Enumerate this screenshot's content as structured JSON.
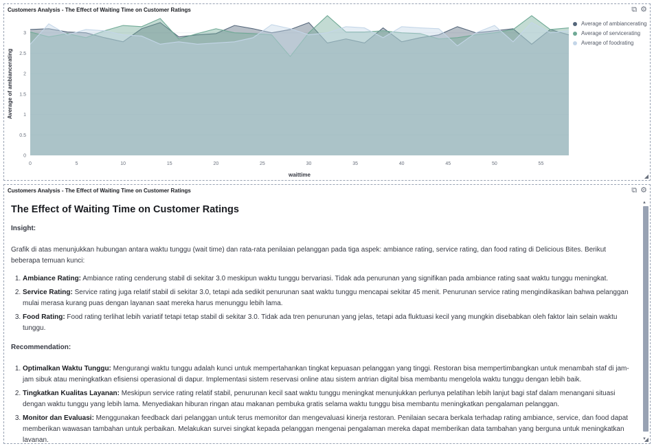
{
  "chart_panel": {
    "title": "Customers Analysis - The Effect of Waiting Time on Customer Ratings",
    "icons": [
      "layers-icon",
      "gear-icon"
    ]
  },
  "text_panel": {
    "title": "Customers Analysis - The Effect of Waiting Time on Customer Ratings",
    "heading": "The Effect of Waiting Time on Customer Ratings",
    "insight_label": "Insight:",
    "intro": "Grafik di atas menunjukkan hubungan antara waktu tunggu (wait time) dan rata-rata penilaian pelanggan pada tiga aspek: ambiance rating, service rating, dan food rating di Delicious Bites. Berikut beberapa temuan kunci:",
    "insights": [
      {
        "title": "Ambiance Rating:",
        "text": " Ambiance rating cenderung stabil di sekitar 3.0 meskipun waktu tunggu bervariasi. Tidak ada penurunan yang signifikan pada ambiance rating saat waktu tunggu meningkat."
      },
      {
        "title": "Service Rating:",
        "text": " Service rating juga relatif stabil di sekitar 3.0, tetapi ada sedikit penurunan saat waktu tunggu mencapai sekitar 45 menit. Penurunan service rating mengindikasikan bahwa pelanggan mulai merasa kurang puas dengan layanan saat mereka harus menunggu lebih lama."
      },
      {
        "title": "Food Rating:",
        "text": " Food rating terlihat lebih variatif tetapi tetap stabil di sekitar 3.0. Tidak ada tren penurunan yang jelas, tetapi ada fluktuasi kecil yang mungkin disebabkan oleh faktor lain selain waktu tunggu."
      }
    ],
    "recommendation_label": "Recommendation:",
    "recommendations": [
      {
        "title": "Optimalkan Waktu Tunggu:",
        "text": " Mengurangi waktu tunggu adalah kunci untuk mempertahankan tingkat kepuasan pelanggan yang tinggi. Restoran bisa mempertimbangkan untuk menambah staf di jam-jam sibuk atau meningkatkan efisiensi operasional di dapur. Implementasi sistem reservasi online atau sistem antrian digital bisa membantu mengelola waktu tunggu dengan lebih baik."
      },
      {
        "title": "Tingkatkan Kualitas Layanan:",
        "text": " Meskipun service rating relatif stabil, penurunan kecil saat waktu tunggu meningkat menunjukkan perlunya pelatihan lebih lanjut bagi staf dalam menangani situasi dengan waktu tunggu yang lebih lama. Menyediakan hiburan ringan atau makanan pembuka gratis selama waktu tunggu bisa membantu meningkatkan pengalaman pelanggan."
      },
      {
        "title": "Monitor dan Evaluasi:",
        "text": " Menggunakan feedback dari pelanggan untuk terus memonitor dan mengevaluasi kinerja restoran. Penilaian secara berkala terhadap rating ambiance, service, dan food dapat memberikan wawasan tambahan untuk perbaikan. Melakukan survei singkat kepada pelanggan mengenai pengalaman mereka dapat memberikan data tambahan yang berguna untuk meningkatkan layanan."
      }
    ]
  },
  "chart_data": {
    "type": "area",
    "xlabel": "waittime",
    "ylabel": "Average of ambiancerating",
    "xlim": [
      0,
      58
    ],
    "ylim": [
      0,
      3.5
    ],
    "xticks": [
      0,
      5,
      10,
      15,
      20,
      25,
      30,
      35,
      40,
      45,
      50,
      55
    ],
    "yticks": [
      0,
      0.5,
      1,
      1.5,
      2,
      2.5,
      3
    ],
    "legend_position": "top-right",
    "x": [
      0,
      2,
      4,
      6,
      8,
      10,
      12,
      14,
      16,
      18,
      20,
      22,
      24,
      26,
      28,
      30,
      32,
      34,
      36,
      38,
      40,
      42,
      44,
      46,
      48,
      50,
      52,
      54,
      56,
      58
    ],
    "series": [
      {
        "name": "Average of ambiancerating",
        "color": "#54667a",
        "values": [
          3.08,
          3.1,
          3.02,
          3.0,
          2.88,
          2.78,
          3.1,
          3.25,
          2.9,
          2.95,
          2.98,
          3.18,
          3.1,
          3.0,
          3.08,
          3.25,
          2.75,
          2.85,
          2.75,
          3.12,
          2.78,
          2.88,
          2.95,
          3.15,
          3.0,
          3.05,
          3.1,
          2.72,
          3.08,
          2.95
        ]
      },
      {
        "name": "Average of servicerating",
        "color": "#6fa995",
        "values": [
          3.02,
          2.9,
          2.98,
          2.88,
          3.05,
          3.18,
          3.15,
          3.35,
          2.85,
          2.98,
          3.1,
          3.0,
          2.98,
          2.95,
          2.42,
          3.0,
          3.42,
          3.02,
          3.02,
          3.05,
          3.0,
          2.98,
          2.85,
          2.88,
          2.95,
          3.0,
          3.08,
          3.42,
          3.08,
          3.12
        ]
      },
      {
        "name": "Average of foodrating",
        "color": "#c4d6e8",
        "values": [
          2.72,
          3.22,
          2.95,
          3.08,
          3.05,
          2.95,
          2.92,
          2.72,
          2.78,
          2.72,
          2.75,
          2.78,
          2.88,
          3.2,
          3.1,
          2.95,
          3.0,
          3.15,
          3.12,
          2.88,
          3.15,
          3.12,
          3.1,
          2.68,
          3.0,
          3.18,
          2.78,
          3.25,
          3.0,
          3.05
        ]
      }
    ]
  }
}
